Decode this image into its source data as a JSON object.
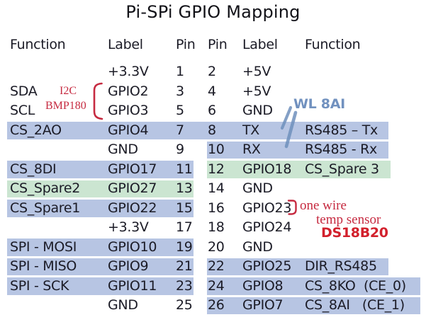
{
  "title": "Pi-SPi GPIO Mapping",
  "header": {
    "function_left": "Function",
    "label_left": "Label",
    "pin_left": "Pin",
    "pin_right": "Pin",
    "label_right": "Label",
    "function_right": "Function"
  },
  "table": {
    "rows": [
      {
        "f1": "",
        "l1": "+3.3V",
        "p1": "1",
        "p2": "2",
        "l2": "+5V",
        "f2": "",
        "hl": []
      },
      {
        "f1": "SDA",
        "l1": "GPIO2",
        "p1": "3",
        "p2": "4",
        "l2": "+5V",
        "f2": "",
        "hl": []
      },
      {
        "f1": "SCL",
        "l1": "GPIO3",
        "p1": "5",
        "p2": "6",
        "l2": "GND",
        "f2": "",
        "hl": []
      },
      {
        "f1": "CS_2AO",
        "l1": "GPIO4",
        "p1": "7",
        "p2": "8",
        "l2": "TX",
        "f2": "RS485 – Tx",
        "hl": [
          "full-blue"
        ]
      },
      {
        "f1": "",
        "l1": "GND",
        "p1": "9",
        "p2": "10",
        "l2": "RX",
        "f2": "RS485 - Rx",
        "hl": [
          "right-blue"
        ]
      },
      {
        "f1": "CS_8DI",
        "l1": "GPIO17",
        "p1": "11",
        "p2": "12",
        "l2": "GPIO18",
        "f2": "CS_Spare 3",
        "hl": [
          "left-blue",
          "right-green"
        ]
      },
      {
        "f1": "CS_Spare2",
        "l1": "GPIO27",
        "p1": "13",
        "p2": "14",
        "l2": "GND",
        "f2": "",
        "hl": [
          "left-green"
        ]
      },
      {
        "f1": "CS_Spare1",
        "l1": "GPIO22",
        "p1": "15",
        "p2": "16",
        "l2": "GPIO23",
        "f2": "",
        "hl": [
          "left-blue"
        ]
      },
      {
        "f1": "",
        "l1": "+3.3V",
        "p1": "17",
        "p2": "18",
        "l2": "GPIO24",
        "f2": "",
        "hl": []
      },
      {
        "f1": "SPI - MOSI",
        "l1": "GPIO10",
        "p1": "19",
        "p2": "20",
        "l2": "GND",
        "f2": "",
        "hl": [
          "left-blue"
        ]
      },
      {
        "f1": "SPI - MISO",
        "l1": "GPIO9",
        "p1": "21",
        "p2": "22",
        "l2": "GPIO25",
        "f2": "DIR_RS485",
        "hl": [
          "left-blue",
          "right-blue"
        ]
      },
      {
        "f1": "SPI - SCK",
        "l1": "GPIO11",
        "p1": "23",
        "p2": "24",
        "l2": "GPIO8",
        "f2": "CS_8KO  (CE_0)",
        "hl": [
          "left-blue",
          "right-blue-wide"
        ]
      },
      {
        "f1": "",
        "l1": "GND",
        "p1": "25",
        "p2": "26",
        "l2": "GPIO7",
        "f2": "CS_8AI   (CE_1)",
        "hl": [
          "right-blue-wide"
        ]
      }
    ]
  },
  "annotations": {
    "i2c_line1": "I2C",
    "i2c_line2": "BMP180",
    "wl_8ai": "WL 8AI",
    "one_wire": "one wire",
    "temp_sensor": "temp sensor",
    "sensor_model": "DS18B20"
  },
  "colors": {
    "highlight_blue": "#b7c5e3",
    "highlight_green": "#cbe5d1",
    "annotation_red": "#c62a40",
    "sensor_red": "#d2202c",
    "annotation_blue": "#7191bf",
    "text": "#1b1b26"
  }
}
